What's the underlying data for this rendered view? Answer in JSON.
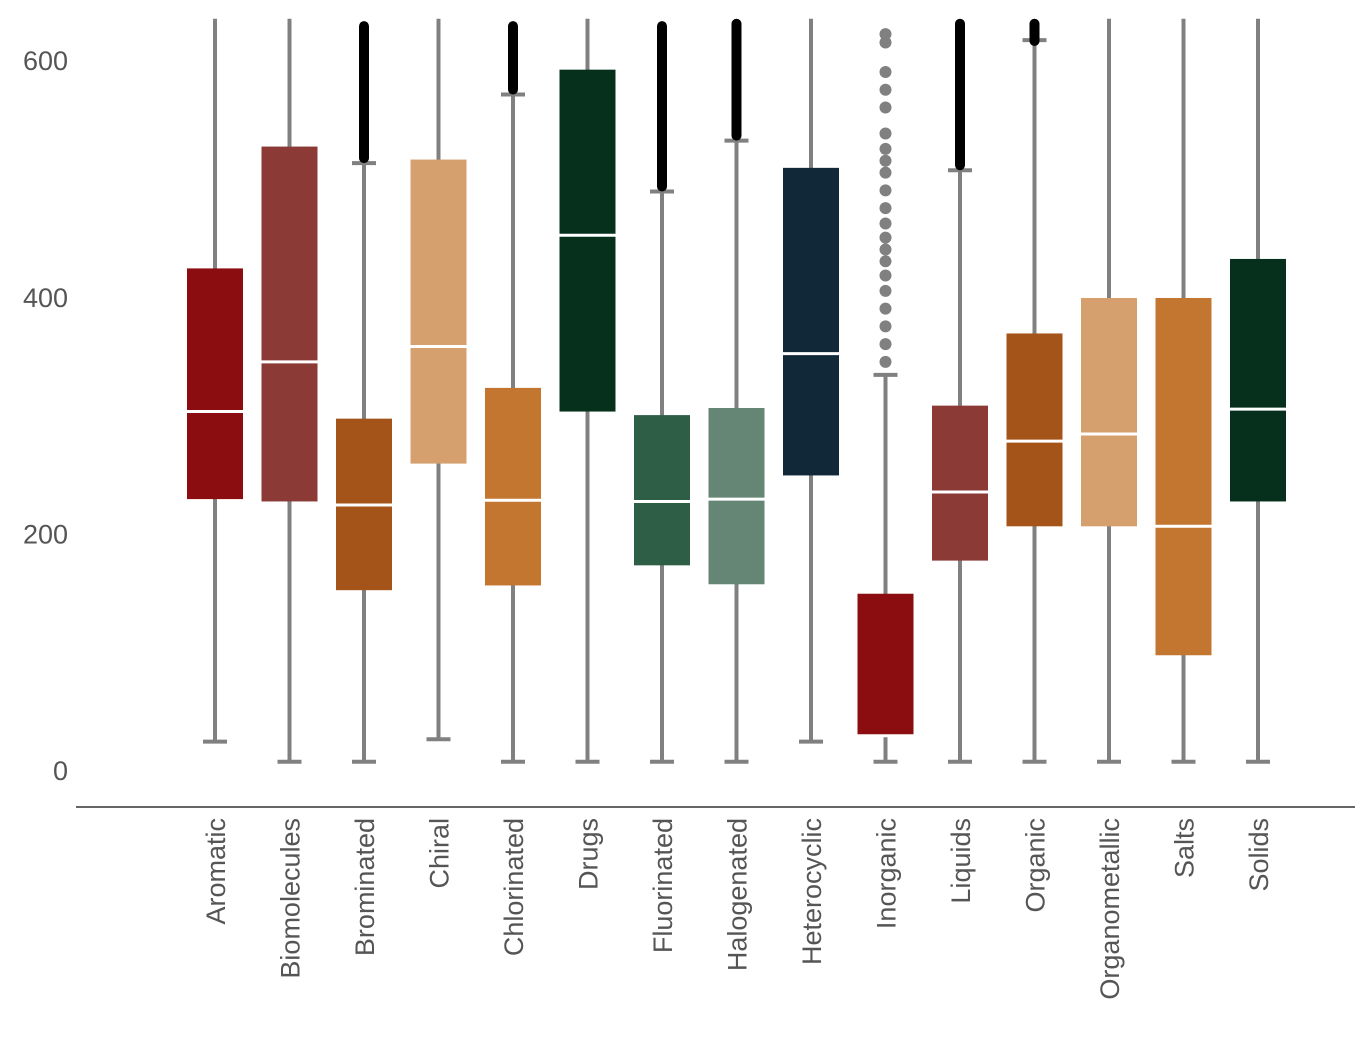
{
  "chart_data": {
    "type": "box",
    "title": "",
    "xlabel": "",
    "ylabel": "",
    "ylim": [
      -30,
      635
    ],
    "yticks": [
      0,
      200,
      400,
      600
    ],
    "grid": false,
    "colors": {
      "whisker": "#808080",
      "median": "#ffffff",
      "outlier_dark": "#000000",
      "outlier_gray": "#808080",
      "axis": "#666666"
    },
    "categories": [
      "Aromatic",
      "Biomolecules",
      "Brominated",
      "Chiral",
      "Chlorinated",
      "Drugs",
      "Fluorinated",
      "Halogenated",
      "Heterocyclic",
      "Inorganic",
      "Liquids",
      "Organic",
      "Organometallic",
      "Salts",
      "Solids"
    ],
    "boxes": [
      {
        "name": "Aromatic",
        "whisker_low": 24,
        "q1": 229,
        "median": 303,
        "q3": 424,
        "whisker_high": 635,
        "color": "#8b0d0f",
        "outliers": []
      },
      {
        "name": "Biomolecules",
        "whisker_low": 7,
        "q1": 227,
        "median": 345,
        "q3": 527,
        "whisker_high": 635,
        "color": "#8b3a36",
        "outliers": []
      },
      {
        "name": "Brominated",
        "whisker_low": 7,
        "q1": 152,
        "median": 224,
        "q3": 297,
        "whisker_high": 513,
        "color": "#a45418",
        "outliers": [],
        "outlier_band": [
          513,
          633
        ],
        "outlier_style": "dark"
      },
      {
        "name": "Chiral",
        "whisker_low": 26,
        "q1": 259,
        "median": 358,
        "q3": 516,
        "whisker_high": 635,
        "color": "#d5a06e",
        "outliers": []
      },
      {
        "name": "Chlorinated",
        "whisker_low": 7,
        "q1": 156,
        "median": 228,
        "q3": 323,
        "whisker_high": 571,
        "color": "#c3762f",
        "outliers": [],
        "outlier_band": [
          571,
          633
        ],
        "outlier_style": "dark"
      },
      {
        "name": "Drugs",
        "whisker_low": 7,
        "q1": 303,
        "median": 452,
        "q3": 592,
        "whisker_high": 635,
        "color": "#07301c",
        "outliers": []
      },
      {
        "name": "Fluorinated",
        "whisker_low": 7,
        "q1": 173,
        "median": 227,
        "q3": 300,
        "whisker_high": 489,
        "color": "#2f5e47",
        "outliers": [],
        "outlier_band": [
          489,
          633
        ],
        "outlier_style": "dark"
      },
      {
        "name": "Halogenated",
        "whisker_low": 7,
        "q1": 157,
        "median": 229,
        "q3": 306,
        "whisker_high": 532,
        "color": "#658674",
        "outliers": [],
        "outlier_band": [
          532,
          635
        ],
        "outlier_style": "dark"
      },
      {
        "name": "Heterocyclic",
        "whisker_low": 24,
        "q1": 249,
        "median": 352,
        "q3": 509,
        "whisker_high": 635,
        "color": "#112838",
        "outliers": []
      },
      {
        "name": "Inorganic",
        "whisker_low": 7,
        "q1": 29,
        "median": 29,
        "q3": 149,
        "whisker_high": 334,
        "color": "#8b0d0f",
        "outliers": [
          345,
          360,
          375,
          390,
          405,
          418,
          430,
          440,
          450,
          462,
          475,
          490,
          505,
          515,
          525,
          538,
          560,
          575,
          590,
          615,
          622
        ],
        "outlier_style": "gray"
      },
      {
        "name": "Liquids",
        "whisker_low": 7,
        "q1": 177,
        "median": 235,
        "q3": 308,
        "whisker_high": 507,
        "color": "#8b3a36",
        "outliers": [],
        "outlier_band": [
          507,
          635
        ],
        "outlier_style": "dark"
      },
      {
        "name": "Organic",
        "whisker_low": 7,
        "q1": 206,
        "median": 278,
        "q3": 369,
        "whisker_high": 617,
        "color": "#a45418",
        "outliers": [],
        "outlier_band": [
          612,
          635
        ],
        "outlier_style": "dark"
      },
      {
        "name": "Organometallic",
        "whisker_low": 7,
        "q1": 206,
        "median": 284,
        "q3": 399,
        "whisker_high": 635,
        "color": "#d5a06e",
        "outliers": []
      },
      {
        "name": "Salts",
        "whisker_low": 7,
        "q1": 97,
        "median": 206,
        "q3": 399,
        "whisker_high": 635,
        "color": "#c3762f",
        "outliers": []
      },
      {
        "name": "Solids",
        "whisker_low": 7,
        "q1": 227,
        "median": 305,
        "q3": 432,
        "whisker_high": 635,
        "color": "#07301c",
        "outliers": []
      }
    ]
  }
}
